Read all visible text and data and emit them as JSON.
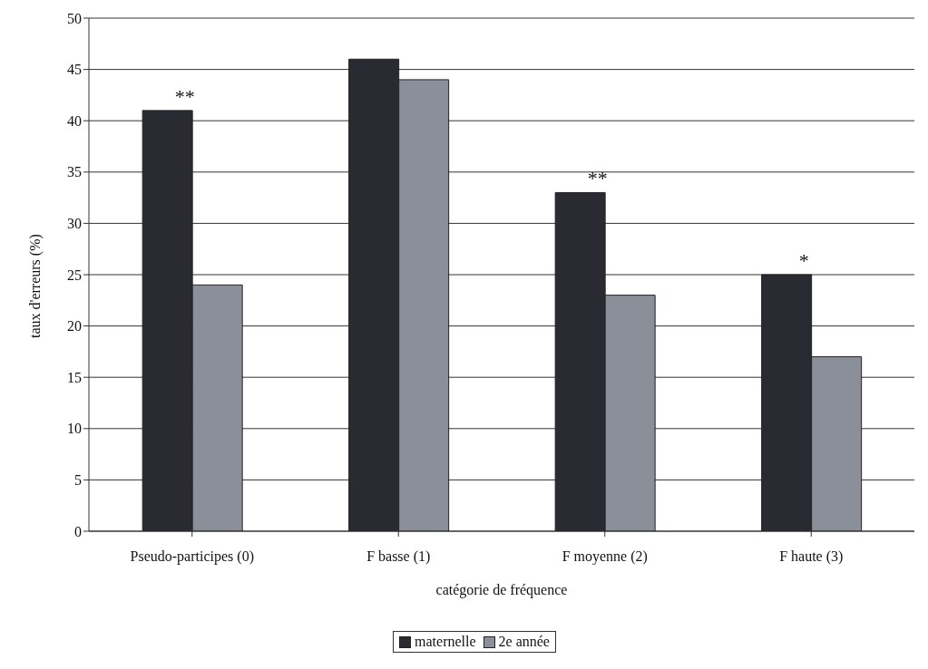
{
  "chart_data": {
    "type": "bar",
    "xlabel": "catégorie de fréquence",
    "ylabel": "taux d'erreurs (%)",
    "categories": [
      "Pseudo-participes (0)",
      "F basse (1)",
      "F moyenne (2)",
      "F haute (3)"
    ],
    "series": [
      {
        "name": "maternelle",
        "color": "#2a2a33",
        "values": [
          41,
          46,
          33,
          25
        ]
      },
      {
        "name": "2e année",
        "color": "#8a8f99",
        "values": [
          24,
          44,
          23,
          17
        ]
      }
    ],
    "ylim": [
      0,
      50
    ],
    "yticks": [
      0,
      5,
      10,
      15,
      20,
      25,
      30,
      35,
      40,
      45,
      50
    ],
    "grid": "y",
    "legend": "bottom",
    "annotations": [
      {
        "text": "**",
        "x": "Pseudo-participes (0)",
        "y": 41
      },
      {
        "text": "**",
        "x": "F moyenne (2)",
        "y": 33
      },
      {
        "text": "*",
        "x": "F haute (3)",
        "y": 25
      }
    ]
  }
}
